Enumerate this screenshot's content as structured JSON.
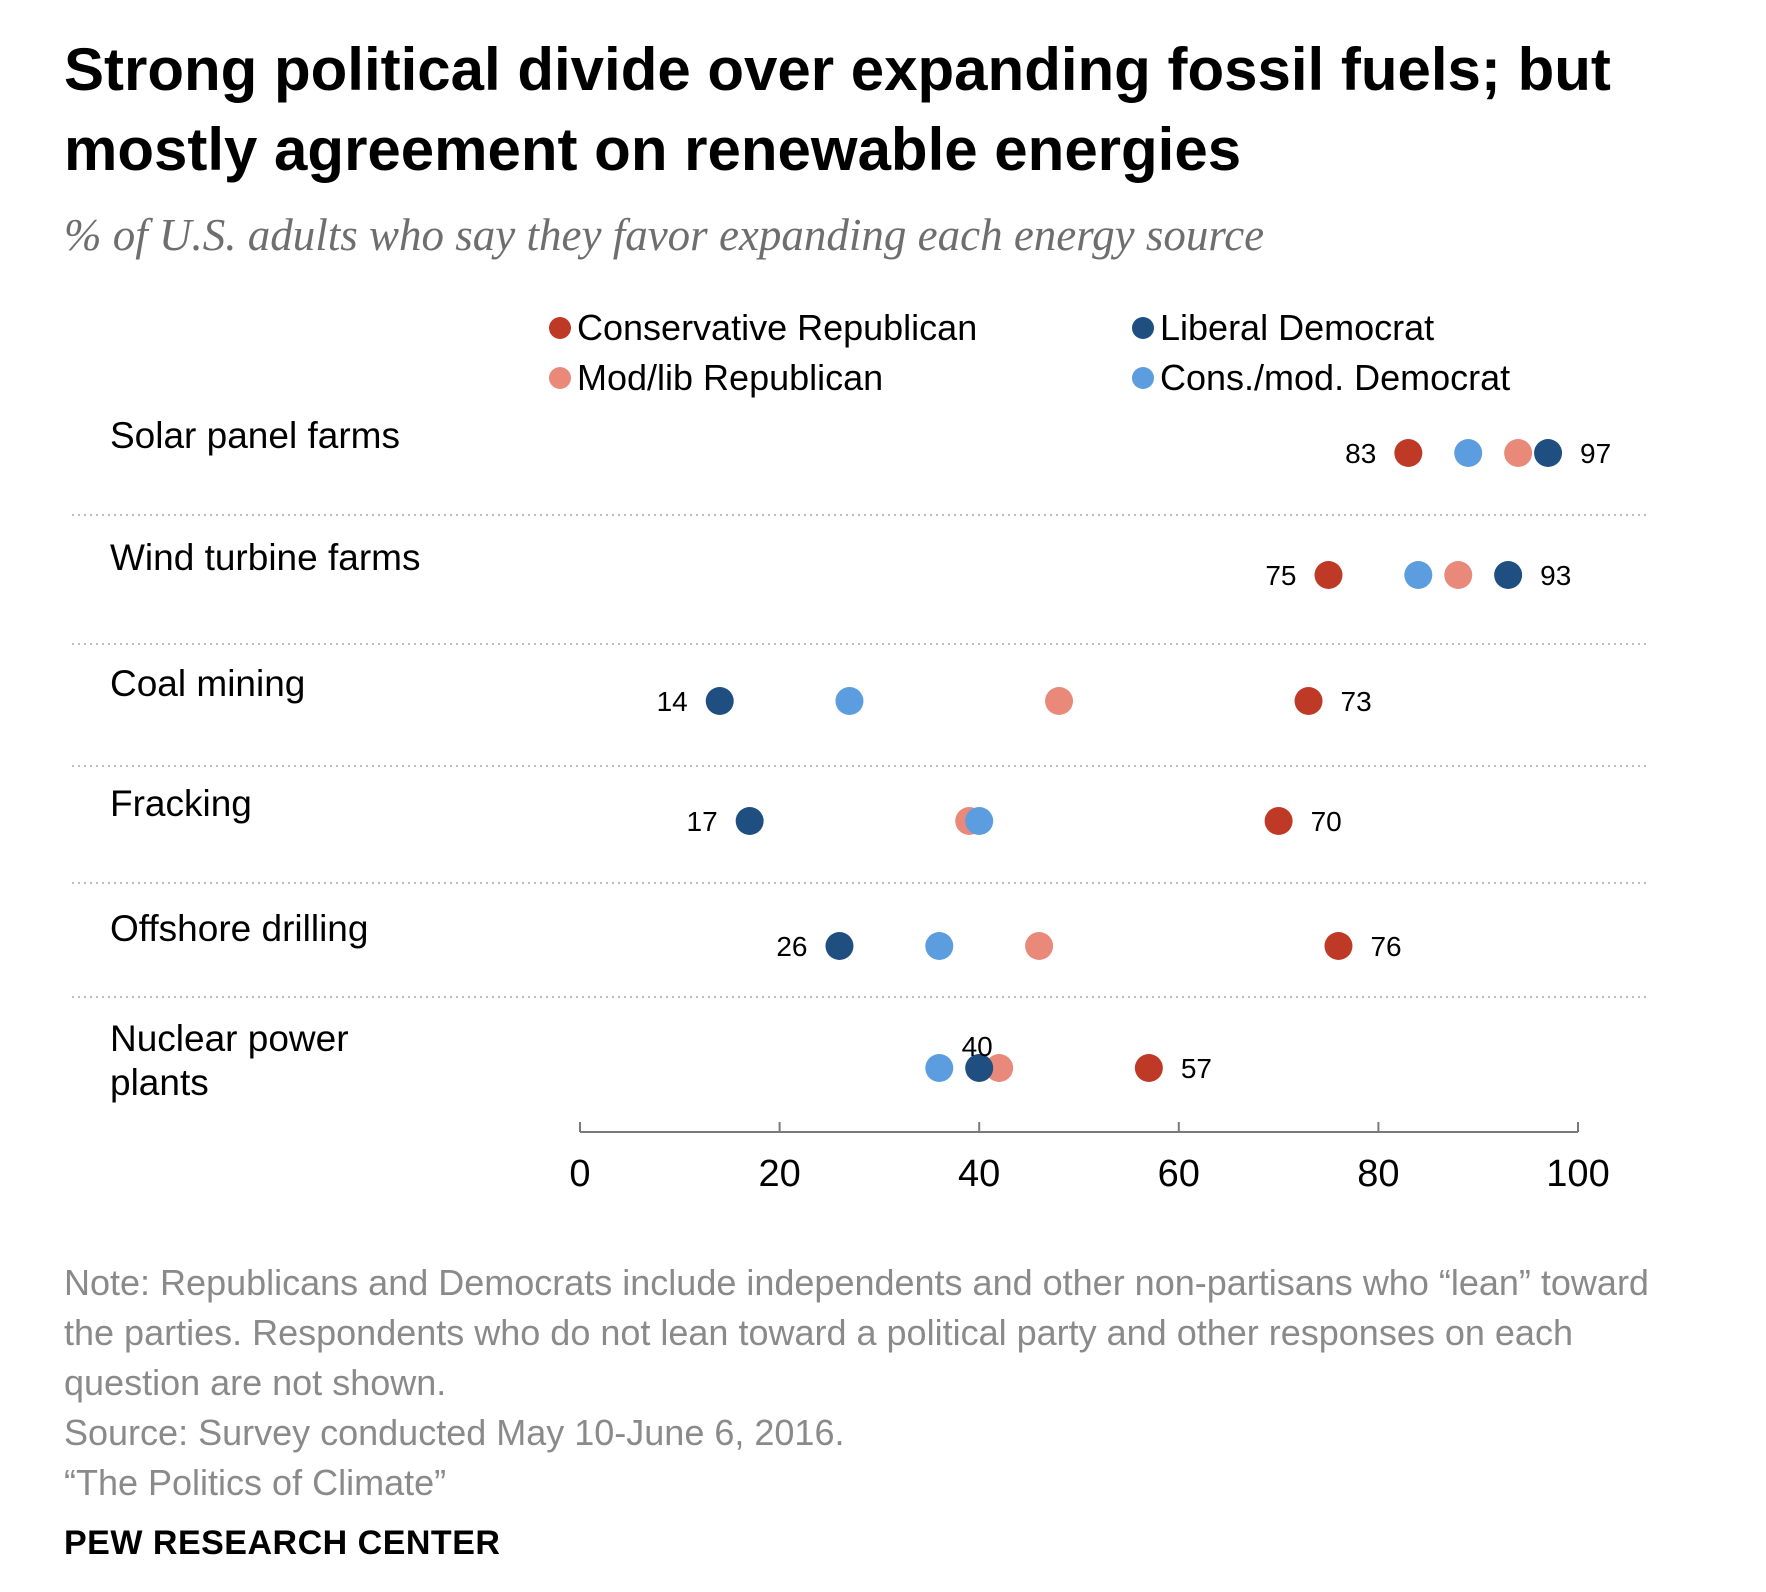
{
  "title": "Strong political divide over expanding fossil fuels; but mostly agreement on renewable energies",
  "subtitle": "% of U.S. adults who say they favor expanding each energy source",
  "colors": {
    "cons_rep": "#bf3927",
    "mod_rep": "#e8897a",
    "lib_dem": "#1f4e80",
    "cons_dem": "#5b9ddf",
    "text": "#000000",
    "muted": "#8a8a8a",
    "grid": "#bdbdbd"
  },
  "chart_data": {
    "type": "scatter",
    "xlim": [
      0,
      100
    ],
    "xticks": [
      0,
      20,
      40,
      60,
      80,
      100
    ],
    "legend_position": "top",
    "categories": [
      "Solar panel farms",
      "Wind turbine farms",
      "Coal mining",
      "Fracking",
      "Offshore drilling",
      "Nuclear power plants"
    ],
    "series": [
      {
        "name": "Conservative Republican",
        "color_key": "cons_rep",
        "values": [
          83,
          75,
          73,
          70,
          76,
          57
        ]
      },
      {
        "name": "Mod/lib Republican",
        "color_key": "mod_rep",
        "values": [
          94,
          88,
          48,
          39,
          46,
          42
        ]
      },
      {
        "name": "Liberal Democrat",
        "color_key": "lib_dem",
        "values": [
          97,
          93,
          14,
          17,
          26,
          40
        ]
      },
      {
        "name": "Cons./mod. Democrat",
        "color_key": "cons_dem",
        "values": [
          89,
          84,
          27,
          40,
          36,
          36
        ]
      }
    ],
    "data_labels": [
      {
        "category": 0,
        "value_left": "83",
        "value_right": "97"
      },
      {
        "category": 1,
        "value_left": "75",
        "value_right": "93"
      },
      {
        "category": 2,
        "value_left": "14",
        "value_right": "73"
      },
      {
        "category": 3,
        "value_left": "17",
        "value_right": "70"
      },
      {
        "category": 4,
        "value_left": "26",
        "value_right": "76"
      },
      {
        "category": 5,
        "value_left": "40",
        "value_right": "57"
      }
    ]
  },
  "notes": {
    "note": "Note: Republicans and Democrats include independents and other non-partisans who “lean” toward the parties. Respondents who do not lean toward a political party and other responses on each question are not shown.",
    "source": "Source: Survey conducted May 10-June 6, 2016.",
    "report": "“The Politics of Climate”"
  },
  "brand": "PEW RESEARCH CENTER"
}
